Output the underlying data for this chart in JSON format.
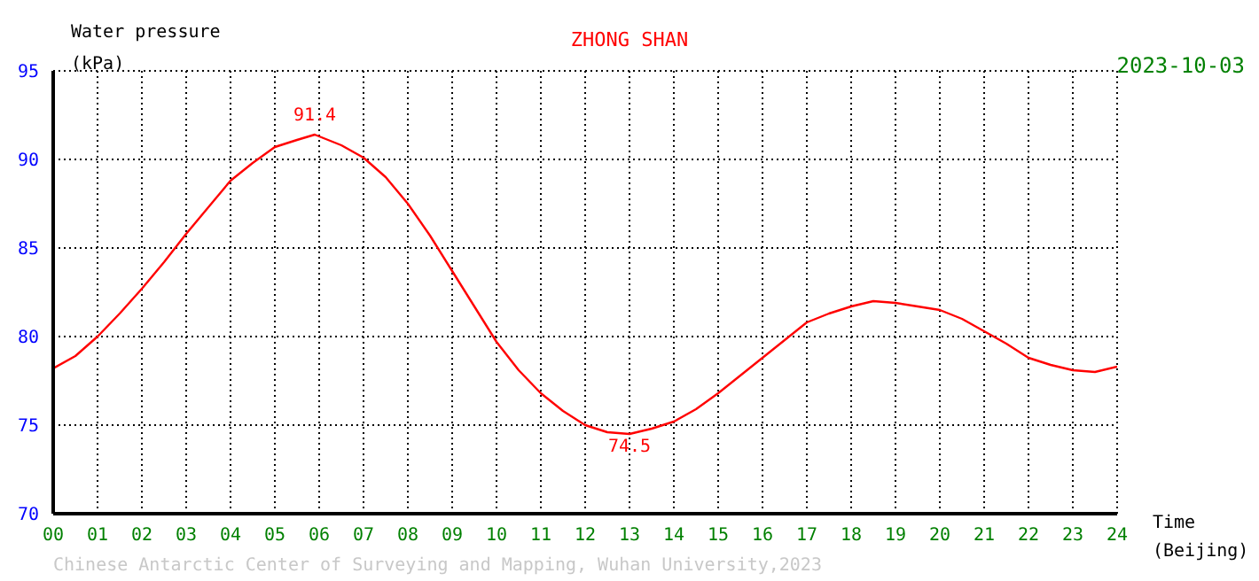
{
  "chart_data": {
    "type": "line",
    "title": "ZHONG SHAN",
    "subtitle": "2023-10-03",
    "ylabel": "Water pressure\n(kPa)",
    "xlabel": "Time\n(Beijing)",
    "x": [
      0,
      0.5,
      1,
      1.5,
      2,
      2.5,
      3,
      3.5,
      4,
      4.5,
      5,
      5.5,
      5.9,
      6.5,
      7,
      7.5,
      8,
      8.5,
      9,
      9.5,
      10,
      10.5,
      11,
      11.5,
      12,
      12.5,
      13,
      13.5,
      14,
      14.5,
      15,
      15.5,
      16,
      16.5,
      17,
      17.5,
      18,
      18.5,
      19,
      19.5,
      20,
      20.5,
      21,
      21.5,
      22,
      22.5,
      23,
      23.5,
      24
    ],
    "series": [
      {
        "color": "#ff0000",
        "values": [
          78.2,
          78.9,
          80.0,
          81.3,
          82.7,
          84.2,
          85.8,
          87.3,
          88.8,
          89.8,
          90.7,
          91.1,
          91.4,
          90.8,
          90.1,
          89.0,
          87.5,
          85.7,
          83.7,
          81.7,
          79.7,
          78.1,
          76.8,
          75.8,
          75.0,
          74.6,
          74.5,
          74.8,
          75.2,
          75.9,
          76.8,
          77.8,
          78.8,
          79.8,
          80.8,
          81.3,
          81.7,
          82.0,
          81.9,
          81.7,
          81.5,
          81.0,
          80.3,
          79.6,
          78.8,
          78.4,
          78.1,
          78.0,
          78.3
        ]
      }
    ],
    "xlim": [
      0,
      24
    ],
    "xticks": [
      {
        "value": 0,
        "label": "00"
      },
      {
        "value": 1,
        "label": "01"
      },
      {
        "value": 2,
        "label": "02"
      },
      {
        "value": 3,
        "label": "03"
      },
      {
        "value": 4,
        "label": "04"
      },
      {
        "value": 5,
        "label": "05"
      },
      {
        "value": 6,
        "label": "06"
      },
      {
        "value": 7,
        "label": "07"
      },
      {
        "value": 8,
        "label": "08"
      },
      {
        "value": 9,
        "label": "09"
      },
      10,
      11,
      12,
      13,
      14,
      15,
      16,
      17,
      18,
      19,
      20,
      21,
      22,
      23,
      24
    ],
    "ylim": [
      70,
      95
    ],
    "yticks": [
      70,
      75,
      80,
      85,
      90,
      95
    ],
    "grid": true,
    "marker": "none",
    "line_style": "solid",
    "annotations": [
      {
        "text": "91.4",
        "x": 5.9,
        "y": 91.4
      },
      {
        "text": "74.5",
        "x": 13,
        "y": 74.5
      },
      "Chinese Antarctic Center of Surveying and Mapping, Wuhan University,2023"
    ]
  }
}
